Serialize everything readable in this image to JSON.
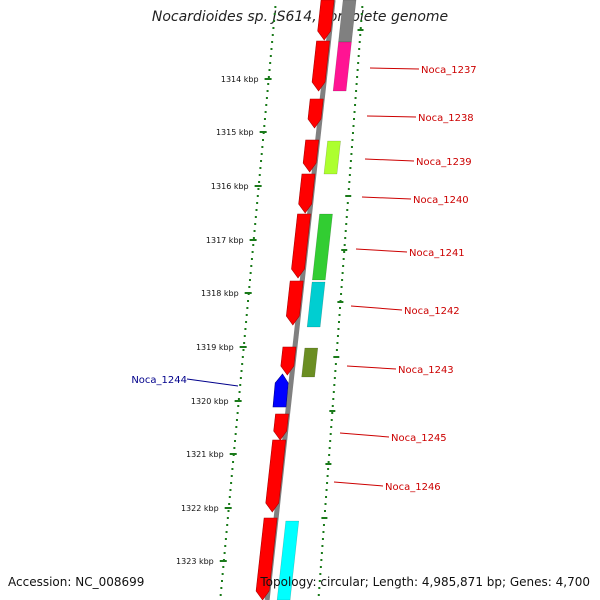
{
  "title": "Nocardioides sp. JS614, complete genome",
  "footer": {
    "accession": "Accession: NC_008699",
    "topology": "Topology: circular; Length: 4,985,871 bp; Genes: 4,700"
  },
  "colors": {
    "backbone": "#808080",
    "tick": "#1a7a1a",
    "label_right": "#cc0000",
    "label_left": "#00008b"
  },
  "kbp_ticks": [
    "1314 kbp",
    "1315 kbp",
    "1316 kbp",
    "1317 kbp",
    "1318 kbp",
    "1319 kbp",
    "1320 kbp",
    "1321 kbp",
    "1322 kbp",
    "1323 kbp"
  ],
  "gene_labels": [
    {
      "name": "Noca_1237",
      "side": "right"
    },
    {
      "name": "Noca_1238",
      "side": "right"
    },
    {
      "name": "Noca_1239",
      "side": "right"
    },
    {
      "name": "Noca_1240",
      "side": "right"
    },
    {
      "name": "Noca_1241",
      "side": "right"
    },
    {
      "name": "Noca_1242",
      "side": "right"
    },
    {
      "name": "Noca_1243",
      "side": "right"
    },
    {
      "name": "Noca_1244",
      "side": "left"
    },
    {
      "name": "Noca_1245",
      "side": "right"
    },
    {
      "name": "Noca_1246",
      "side": "right"
    }
  ],
  "genes": [
    {
      "strand": "forward",
      "color": "#ff0000"
    },
    {
      "strand": "forward",
      "color": "#ff0000"
    },
    {
      "strand": "forward",
      "color": "#ff0000"
    },
    {
      "strand": "forward",
      "color": "#ff0000"
    },
    {
      "strand": "forward",
      "color": "#ff0000"
    },
    {
      "strand": "forward",
      "color": "#ff0000"
    },
    {
      "strand": "forward",
      "color": "#ff0000"
    },
    {
      "strand": "forward",
      "color": "#ff0000"
    },
    {
      "strand": "forward",
      "color": "#ff0000"
    },
    {
      "strand": "forward",
      "color": "#ff0000"
    },
    {
      "strand": "forward",
      "color": "#ff0000"
    },
    {
      "strand": "reverse",
      "color": "#0000ff"
    }
  ],
  "cog_blocks": [
    {
      "color": "#808080"
    },
    {
      "color": "#ff1493"
    },
    {
      "color": "#adff2f"
    },
    {
      "color": "#32cd32"
    },
    {
      "color": "#00ced1"
    },
    {
      "color": "#6b8e23"
    },
    {
      "color": "#00ffff"
    }
  ]
}
